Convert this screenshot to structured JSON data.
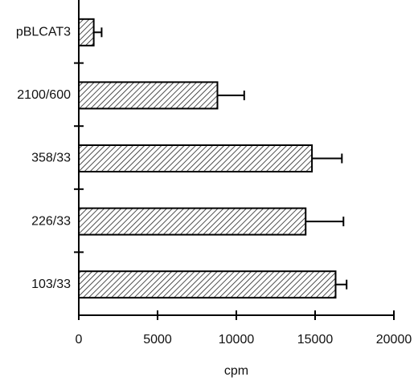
{
  "chart_data": {
    "type": "hbar",
    "x_label": "cpm",
    "categories": [
      "pBLCAT3",
      "2100/600",
      "358/33",
      "226/33",
      "103/33"
    ],
    "values": [
      950,
      8800,
      14800,
      14400,
      16300
    ],
    "errors": [
      500,
      1700,
      1900,
      2400,
      700
    ],
    "color": "#000000",
    "xlim": [
      0,
      20000
    ],
    "xticks": [
      0,
      5000,
      10000,
      15000,
      20000
    ]
  }
}
